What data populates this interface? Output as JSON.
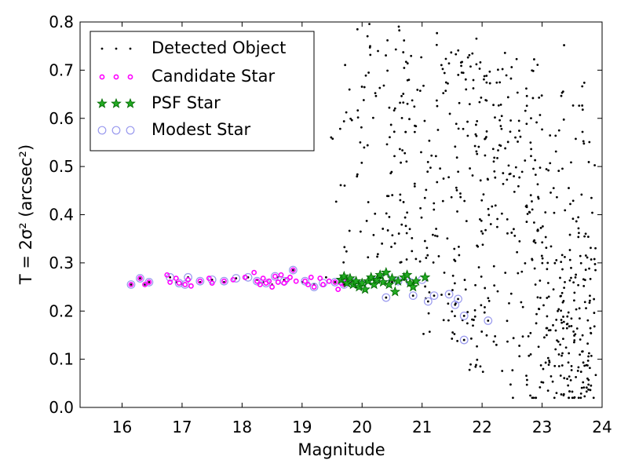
{
  "chart_data": {
    "type": "scatter",
    "xlabel": "Magnitude",
    "ylabel": "T = 2σ² (arcsec²)",
    "xlim": [
      15.3,
      24
    ],
    "ylim": [
      0.0,
      0.8
    ],
    "xticks": [
      "16",
      "17",
      "18",
      "19",
      "20",
      "21",
      "22",
      "23",
      "24"
    ],
    "yticks": [
      "0.0",
      "0.1",
      "0.2",
      "0.3",
      "0.4",
      "0.5",
      "0.6",
      "0.7",
      "0.8"
    ],
    "grid": false,
    "legend_position": "top-left",
    "colors": {
      "detected": "#000000",
      "candidate": "#ff00ff",
      "psf_fill": "#22aa22",
      "psf_edge": "#006600",
      "modest": "#9999ee"
    },
    "series": [
      {
        "name": "Detected Object",
        "marker": "dot",
        "generated_region": {
          "x_range": [
            19.3,
            23.9
          ],
          "y_range": [
            0.02,
            0.8
          ],
          "count": 700
        },
        "points": [
          [
            16.15,
            0.255
          ],
          [
            16.3,
            0.268
          ],
          [
            16.38,
            0.255
          ],
          [
            16.45,
            0.26
          ],
          [
            16.8,
            0.27
          ],
          [
            16.9,
            0.26
          ],
          [
            17.0,
            0.255
          ],
          [
            17.1,
            0.27
          ],
          [
            17.3,
            0.26
          ],
          [
            17.5,
            0.265
          ],
          [
            17.7,
            0.26
          ],
          [
            17.9,
            0.268
          ],
          [
            18.1,
            0.27
          ],
          [
            18.25,
            0.265
          ],
          [
            18.35,
            0.26
          ],
          [
            18.5,
            0.255
          ],
          [
            18.6,
            0.27
          ],
          [
            18.7,
            0.265
          ],
          [
            18.85,
            0.285
          ],
          [
            19.0,
            0.26
          ],
          [
            19.2,
            0.255
          ],
          [
            19.4,
            0.27
          ],
          [
            19.55,
            0.26
          ],
          [
            19.7,
            0.255
          ],
          [
            19.9,
            0.25
          ],
          [
            20.1,
            0.26
          ],
          [
            20.3,
            0.27
          ],
          [
            20.5,
            0.26
          ],
          [
            20.7,
            0.265
          ],
          [
            20.9,
            0.26
          ],
          [
            21.05,
            0.27
          ],
          [
            20.4,
            0.228
          ],
          [
            20.85,
            0.232
          ],
          [
            21.1,
            0.22
          ],
          [
            21.2,
            0.232
          ],
          [
            21.55,
            0.213
          ],
          [
            21.6,
            0.225
          ],
          [
            21.7,
            0.19
          ],
          [
            21.7,
            0.14
          ],
          [
            22.1,
            0.18
          ],
          [
            21.45,
            0.235
          ]
        ]
      },
      {
        "name": "Candidate Star",
        "marker": "small-circle",
        "points": [
          [
            16.15,
            0.255
          ],
          [
            16.3,
            0.268
          ],
          [
            16.38,
            0.255
          ],
          [
            16.45,
            0.26
          ],
          [
            16.75,
            0.275
          ],
          [
            16.8,
            0.26
          ],
          [
            16.9,
            0.268
          ],
          [
            16.95,
            0.258
          ],
          [
            17.05,
            0.255
          ],
          [
            17.1,
            0.265
          ],
          [
            17.15,
            0.252
          ],
          [
            17.3,
            0.262
          ],
          [
            17.45,
            0.268
          ],
          [
            17.5,
            0.258
          ],
          [
            17.7,
            0.262
          ],
          [
            17.85,
            0.265
          ],
          [
            18.05,
            0.27
          ],
          [
            18.2,
            0.28
          ],
          [
            18.25,
            0.262
          ],
          [
            18.3,
            0.255
          ],
          [
            18.35,
            0.268
          ],
          [
            18.4,
            0.258
          ],
          [
            18.45,
            0.262
          ],
          [
            18.5,
            0.25
          ],
          [
            18.55,
            0.272
          ],
          [
            18.6,
            0.26
          ],
          [
            18.65,
            0.275
          ],
          [
            18.7,
            0.258
          ],
          [
            18.75,
            0.265
          ],
          [
            18.8,
            0.27
          ],
          [
            18.85,
            0.285
          ],
          [
            18.9,
            0.262
          ],
          [
            19.05,
            0.262
          ],
          [
            19.1,
            0.255
          ],
          [
            19.15,
            0.27
          ],
          [
            19.2,
            0.25
          ],
          [
            19.3,
            0.268
          ],
          [
            19.35,
            0.255
          ],
          [
            19.45,
            0.262
          ],
          [
            19.55,
            0.26
          ],
          [
            19.6,
            0.245
          ],
          [
            19.65,
            0.258
          ],
          [
            19.7,
            0.255
          ],
          [
            19.75,
            0.265
          ],
          [
            19.85,
            0.26
          ]
        ]
      },
      {
        "name": "PSF Star",
        "marker": "star",
        "points": [
          [
            19.65,
            0.265
          ],
          [
            19.7,
            0.272
          ],
          [
            19.75,
            0.258
          ],
          [
            19.8,
            0.268
          ],
          [
            19.85,
            0.255
          ],
          [
            19.9,
            0.262
          ],
          [
            19.95,
            0.25
          ],
          [
            20.0,
            0.258
          ],
          [
            20.05,
            0.245
          ],
          [
            20.1,
            0.262
          ],
          [
            20.15,
            0.27
          ],
          [
            20.2,
            0.255
          ],
          [
            20.25,
            0.265
          ],
          [
            20.3,
            0.275
          ],
          [
            20.35,
            0.26
          ],
          [
            20.4,
            0.28
          ],
          [
            20.45,
            0.255
          ],
          [
            20.5,
            0.268
          ],
          [
            20.55,
            0.24
          ],
          [
            20.6,
            0.262
          ],
          [
            20.7,
            0.27
          ],
          [
            20.75,
            0.275
          ],
          [
            20.8,
            0.258
          ],
          [
            20.85,
            0.25
          ],
          [
            20.9,
            0.262
          ],
          [
            21.05,
            0.27
          ]
        ]
      },
      {
        "name": "Modest Star",
        "marker": "open-circle",
        "points": [
          [
            16.15,
            0.255
          ],
          [
            16.3,
            0.268
          ],
          [
            16.45,
            0.26
          ],
          [
            16.8,
            0.27
          ],
          [
            16.95,
            0.258
          ],
          [
            17.05,
            0.255
          ],
          [
            17.1,
            0.27
          ],
          [
            17.3,
            0.262
          ],
          [
            17.5,
            0.265
          ],
          [
            17.7,
            0.262
          ],
          [
            17.9,
            0.268
          ],
          [
            18.1,
            0.27
          ],
          [
            18.25,
            0.262
          ],
          [
            18.4,
            0.258
          ],
          [
            18.55,
            0.272
          ],
          [
            18.7,
            0.262
          ],
          [
            18.85,
            0.285
          ],
          [
            19.05,
            0.262
          ],
          [
            19.2,
            0.25
          ],
          [
            19.35,
            0.258
          ],
          [
            19.55,
            0.26
          ],
          [
            19.7,
            0.255
          ],
          [
            19.85,
            0.26
          ],
          [
            20.0,
            0.255
          ],
          [
            20.2,
            0.262
          ],
          [
            20.4,
            0.27
          ],
          [
            20.6,
            0.262
          ],
          [
            20.8,
            0.26
          ],
          [
            21.0,
            0.265
          ],
          [
            20.4,
            0.228
          ],
          [
            20.85,
            0.232
          ],
          [
            21.1,
            0.22
          ],
          [
            21.2,
            0.232
          ],
          [
            21.55,
            0.213
          ],
          [
            21.6,
            0.225
          ],
          [
            21.7,
            0.19
          ],
          [
            21.7,
            0.14
          ],
          [
            22.1,
            0.18
          ],
          [
            21.45,
            0.235
          ]
        ]
      }
    ]
  }
}
